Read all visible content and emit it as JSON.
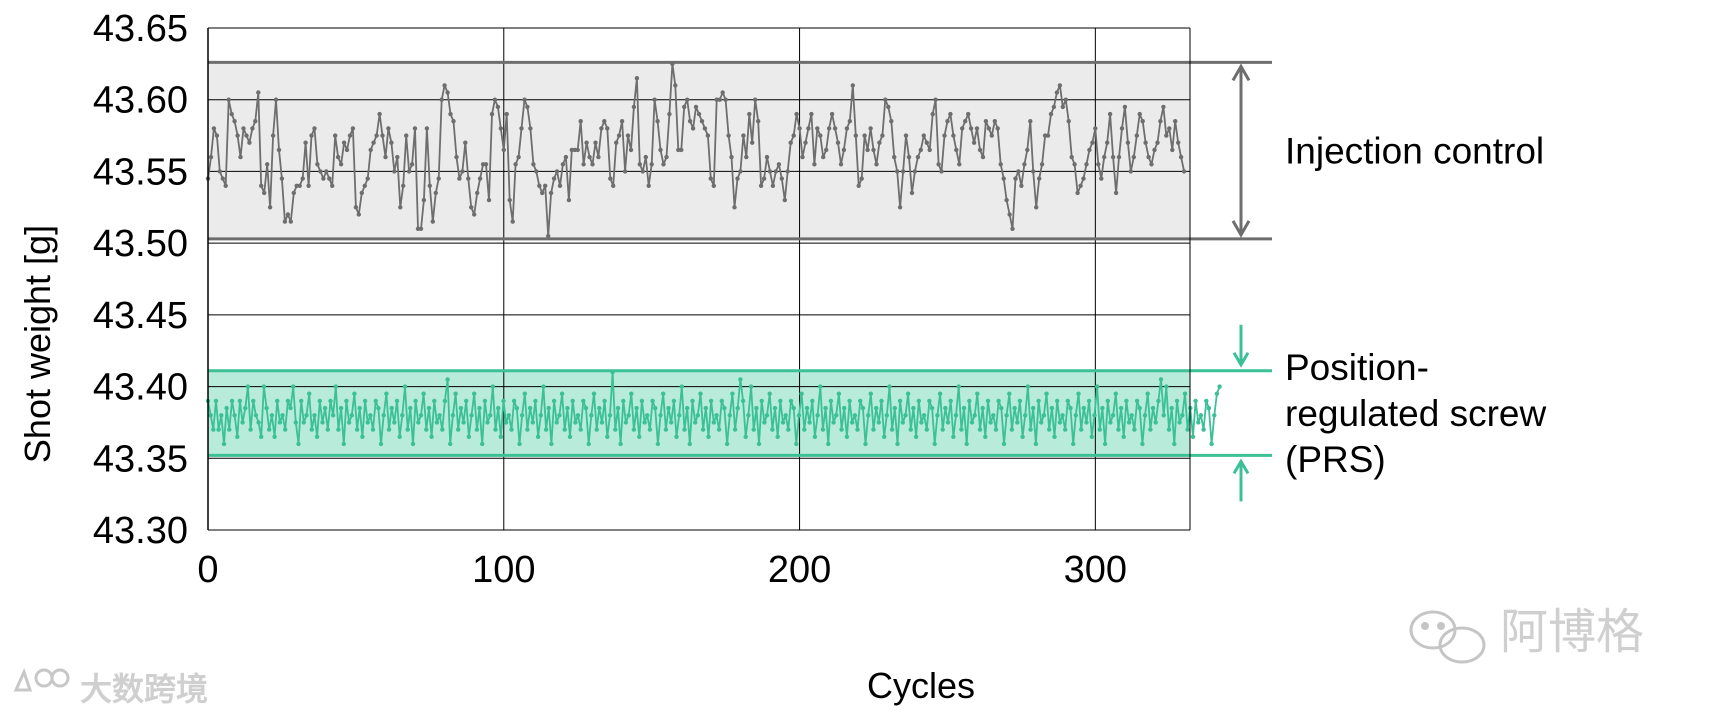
{
  "chart_data": {
    "type": "line",
    "xlabel": "Cycles",
    "ylabel": "Shot weight [g]",
    "xlim": [
      0,
      332
    ],
    "ylim": [
      43.3,
      43.65
    ],
    "xticks": [
      "0",
      "100",
      "200",
      "300"
    ],
    "yticks": [
      "43.30",
      "43.35",
      "43.40",
      "43.45",
      "43.50",
      "43.55",
      "43.60",
      "43.65"
    ],
    "grid": true,
    "series": [
      {
        "name": "Injection control",
        "color": "#6e6e6e",
        "band": [
          43.503,
          43.626
        ],
        "band_color": "#ebebeb",
        "annotation_lines": [
          "Injection control"
        ],
        "arrow_style": "double",
        "x_step": 1,
        "values": [
          43.545,
          43.56,
          43.58,
          43.575,
          43.55,
          43.545,
          43.54,
          43.6,
          43.59,
          43.585,
          43.575,
          43.56,
          43.58,
          43.575,
          43.57,
          43.58,
          43.585,
          43.605,
          43.54,
          43.535,
          43.555,
          43.525,
          43.575,
          43.6,
          43.565,
          43.545,
          43.515,
          43.52,
          43.515,
          43.535,
          43.54,
          43.54,
          43.545,
          43.57,
          43.54,
          43.575,
          43.58,
          43.555,
          43.55,
          43.545,
          43.55,
          43.545,
          43.54,
          43.575,
          43.56,
          43.555,
          43.57,
          43.565,
          43.575,
          43.58,
          43.525,
          43.52,
          43.535,
          43.54,
          43.545,
          43.565,
          43.57,
          43.575,
          43.59,
          43.575,
          43.56,
          43.58,
          43.57,
          43.55,
          43.56,
          43.525,
          43.54,
          43.575,
          43.55,
          43.555,
          43.58,
          43.51,
          43.51,
          43.53,
          43.58,
          43.54,
          43.515,
          43.535,
          43.545,
          43.6,
          43.61,
          43.605,
          43.59,
          43.585,
          43.56,
          43.545,
          43.55,
          43.57,
          43.545,
          43.525,
          43.52,
          43.535,
          43.545,
          43.555,
          43.555,
          43.53,
          43.59,
          43.6,
          43.595,
          43.58,
          43.565,
          43.59,
          43.53,
          43.515,
          43.555,
          43.56,
          43.58,
          43.6,
          43.595,
          43.58,
          43.555,
          43.55,
          43.54,
          43.535,
          43.54,
          43.505,
          43.535,
          43.545,
          43.55,
          43.54,
          43.555,
          43.56,
          43.53,
          43.565,
          43.565,
          43.565,
          43.585,
          43.555,
          43.57,
          43.56,
          43.555,
          43.57,
          43.56,
          43.58,
          43.585,
          43.58,
          43.545,
          43.54,
          43.57,
          43.575,
          43.585,
          43.55,
          43.575,
          43.565,
          43.595,
          43.615,
          43.555,
          43.55,
          43.56,
          43.54,
          43.555,
          43.6,
          43.585,
          43.565,
          43.555,
          43.56,
          43.59,
          43.625,
          43.61,
          43.565,
          43.565,
          43.595,
          43.6,
          43.585,
          43.58,
          43.595,
          43.59,
          43.585,
          43.58,
          43.575,
          43.545,
          43.54,
          43.6,
          43.6,
          43.605,
          43.6,
          43.575,
          43.56,
          43.525,
          43.545,
          43.55,
          43.575,
          43.56,
          43.59,
          43.57,
          43.6,
          43.585,
          43.54,
          43.545,
          43.56,
          43.55,
          43.54,
          43.55,
          43.555,
          43.545,
          43.53,
          43.55,
          43.57,
          43.575,
          43.59,
          43.58,
          43.56,
          43.57,
          43.58,
          43.59,
          43.555,
          43.58,
          43.575,
          43.56,
          43.565,
          43.58,
          43.59,
          43.58,
          43.57,
          43.555,
          43.565,
          43.58,
          43.585,
          43.61,
          43.575,
          43.54,
          43.545,
          43.575,
          43.565,
          43.58,
          43.565,
          43.555,
          43.57,
          43.575,
          43.6,
          43.595,
          43.585,
          43.56,
          43.55,
          43.525,
          43.55,
          43.575,
          43.56,
          43.535,
          43.55,
          43.56,
          43.565,
          43.575,
          43.57,
          43.565,
          43.59,
          43.6,
          43.555,
          43.55,
          43.575,
          43.585,
          43.59,
          43.575,
          43.565,
          43.555,
          43.58,
          43.585,
          43.59,
          43.58,
          43.57,
          43.58,
          43.565,
          43.56,
          43.585,
          43.58,
          43.575,
          43.585,
          43.58,
          43.555,
          43.545,
          43.53,
          43.52,
          43.51,
          43.545,
          43.55,
          43.54,
          43.555,
          43.565,
          43.585,
          43.55,
          43.525,
          43.545,
          43.555,
          43.575,
          43.575,
          43.59,
          43.595,
          43.605,
          43.61,
          43.595,
          43.6,
          43.585,
          43.56,
          43.555,
          43.535,
          43.54,
          43.545,
          43.555,
          43.565,
          43.57,
          43.58,
          43.555,
          43.545,
          43.56,
          43.57,
          43.59,
          43.56,
          43.535,
          43.56,
          43.58,
          43.595,
          43.57,
          43.55,
          43.56,
          43.575,
          43.59,
          43.585,
          43.57,
          43.56,
          43.555,
          43.565,
          43.57,
          43.585,
          43.595,
          43.575,
          43.58,
          43.565,
          43.585,
          43.57,
          43.56,
          43.55
        ]
      },
      {
        "name": "Position-regulated screw (PRS)",
        "color": "#3cc096",
        "band": [
          43.352,
          43.411
        ],
        "band_color": "#b8ebd9",
        "annotation_lines": [
          "Position-",
          "regulated screw",
          "(PRS)"
        ],
        "arrow_style": "converging",
        "x_step": 0.9,
        "values": [
          43.39,
          43.38,
          43.37,
          43.39,
          43.37,
          43.38,
          43.36,
          43.385,
          43.37,
          43.39,
          43.38,
          43.365,
          43.39,
          43.375,
          43.385,
          43.4,
          43.37,
          43.39,
          43.38,
          43.375,
          43.365,
          43.4,
          43.385,
          43.37,
          43.38,
          43.365,
          43.39,
          43.375,
          43.38,
          43.37,
          43.39,
          43.385,
          43.4,
          43.375,
          43.36,
          43.39,
          43.375,
          43.38,
          43.395,
          43.37,
          43.38,
          43.365,
          43.39,
          43.375,
          43.385,
          43.37,
          43.39,
          43.38,
          43.4,
          43.37,
          43.385,
          43.36,
          43.39,
          43.375,
          43.38,
          43.395,
          43.37,
          43.385,
          43.365,
          43.39,
          43.375,
          43.38,
          43.37,
          43.39,
          43.385,
          43.36,
          43.38,
          43.395,
          43.37,
          43.385,
          43.375,
          43.39,
          43.365,
          43.38,
          43.4,
          43.37,
          43.385,
          43.36,
          43.39,
          43.375,
          43.38,
          43.395,
          43.37,
          43.385,
          43.365,
          43.39,
          43.375,
          43.38,
          43.37,
          43.39,
          43.405,
          43.36,
          43.38,
          43.395,
          43.37,
          43.385,
          43.375,
          43.39,
          43.365,
          43.38,
          43.395,
          43.37,
          43.385,
          43.36,
          43.39,
          43.375,
          43.38,
          43.4,
          43.37,
          43.385,
          43.365,
          43.39,
          43.375,
          43.38,
          43.37,
          43.39,
          43.385,
          43.36,
          43.38,
          43.395,
          43.37,
          43.385,
          43.375,
          43.39,
          43.365,
          43.38,
          43.4,
          43.37,
          43.385,
          43.36,
          43.39,
          43.375,
          43.38,
          43.395,
          43.37,
          43.385,
          43.365,
          43.39,
          43.375,
          43.38,
          43.37,
          43.39,
          43.385,
          43.36,
          43.38,
          43.395,
          43.37,
          43.385,
          43.375,
          43.39,
          43.365,
          43.38,
          43.41,
          43.37,
          43.385,
          43.36,
          43.39,
          43.375,
          43.38,
          43.395,
          43.37,
          43.385,
          43.365,
          43.39,
          43.375,
          43.38,
          43.37,
          43.39,
          43.385,
          43.36,
          43.38,
          43.395,
          43.37,
          43.385,
          43.375,
          43.39,
          43.365,
          43.38,
          43.4,
          43.37,
          43.385,
          43.36,
          43.39,
          43.375,
          43.38,
          43.395,
          43.37,
          43.385,
          43.365,
          43.39,
          43.375,
          43.38,
          43.37,
          43.39,
          43.385,
          43.36,
          43.38,
          43.395,
          43.37,
          43.385,
          43.405,
          43.39,
          43.365,
          43.38,
          43.4,
          43.37,
          43.385,
          43.36,
          43.39,
          43.375,
          43.38,
          43.395,
          43.37,
          43.385,
          43.365,
          43.39,
          43.375,
          43.38,
          43.37,
          43.39,
          43.385,
          43.36,
          43.38,
          43.395,
          43.37,
          43.385,
          43.375,
          43.39,
          43.365,
          43.38,
          43.4,
          43.37,
          43.385,
          43.36,
          43.39,
          43.375,
          43.38,
          43.395,
          43.37,
          43.385,
          43.365,
          43.39,
          43.375,
          43.38,
          43.37,
          43.39,
          43.385,
          43.36,
          43.38,
          43.395,
          43.37,
          43.385,
          43.375,
          43.39,
          43.365,
          43.38,
          43.4,
          43.37,
          43.385,
          43.36,
          43.39,
          43.375,
          43.38,
          43.395,
          43.37,
          43.385,
          43.365,
          43.39,
          43.375,
          43.38,
          43.37,
          43.39,
          43.385,
          43.36,
          43.38,
          43.395,
          43.37,
          43.385,
          43.375,
          43.39,
          43.365,
          43.38,
          43.4,
          43.37,
          43.385,
          43.36,
          43.39,
          43.375,
          43.38,
          43.395,
          43.37,
          43.385,
          43.365,
          43.39,
          43.375,
          43.38,
          43.37,
          43.39,
          43.385,
          43.36,
          43.38,
          43.395,
          43.37,
          43.385,
          43.375,
          43.39,
          43.365,
          43.38,
          43.4,
          43.37,
          43.385,
          43.36,
          43.39,
          43.375,
          43.38,
          43.395,
          43.37,
          43.385,
          43.365,
          43.39,
          43.375,
          43.38,
          43.37,
          43.39,
          43.385,
          43.36,
          43.38,
          43.395,
          43.37,
          43.385,
          43.375,
          43.39,
          43.365,
          43.38,
          43.4,
          43.37,
          43.385,
          43.36,
          43.39,
          43.375,
          43.38,
          43.395,
          43.37,
          43.385,
          43.365,
          43.39,
          43.375,
          43.38,
          43.37,
          43.39,
          43.385,
          43.36,
          43.38,
          43.395,
          43.37,
          43.385,
          43.375,
          43.39,
          43.405,
          43.38,
          43.4,
          43.37,
          43.385,
          43.36,
          43.39,
          43.375,
          43.38,
          43.395,
          43.37,
          43.385,
          43.365,
          43.39,
          43.375,
          43.38,
          43.37,
          43.39,
          43.385,
          43.36,
          43.38,
          43.395,
          43.4
        ]
      }
    ]
  },
  "watermarks": {
    "bottom_left_text": "大数跨境",
    "bottom_right_text": "阿博格"
  }
}
